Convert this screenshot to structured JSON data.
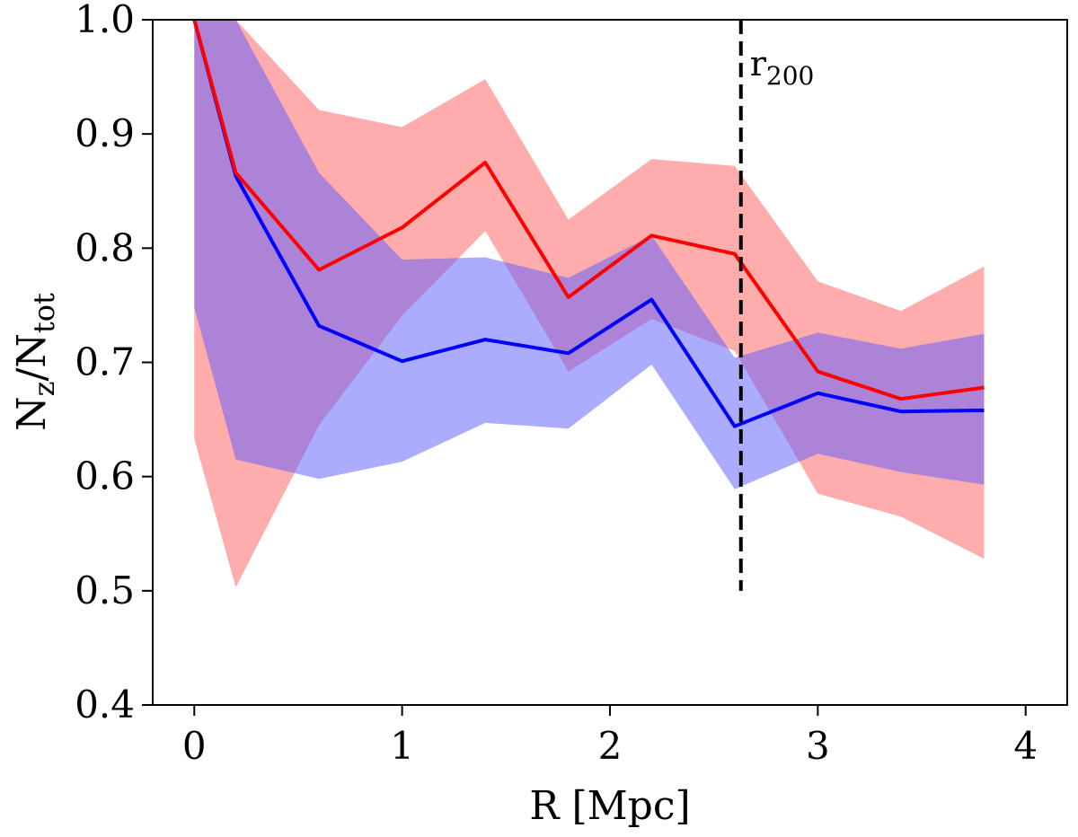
{
  "chart_data": {
    "type": "line",
    "title": "",
    "xlabel": "R  [Mpc]",
    "ylabel": {
      "base": "N",
      "sub1": "z",
      "sep": "/N",
      "sub2": "tot"
    },
    "xlim": [
      -0.2,
      4.2
    ],
    "ylim": [
      0.4,
      1.0
    ],
    "xticks": [
      0,
      1,
      2,
      3,
      4
    ],
    "yticks": [
      0.4,
      0.5,
      0.6,
      0.7,
      0.8,
      0.9,
      1.0
    ],
    "xtick_labels": [
      "0",
      "1",
      "2",
      "3",
      "4"
    ],
    "ytick_labels": [
      "0.4",
      "0.5",
      "0.6",
      "0.7",
      "0.8",
      "0.9",
      "1.0"
    ],
    "grid": false,
    "legend": null,
    "x": [
      0,
      0.2,
      0.6,
      1.0,
      1.4,
      1.8,
      2.2,
      2.6,
      3.0,
      3.4,
      3.8
    ],
    "series": [
      {
        "color": "#ff0000",
        "band_color": "#ff5a5a",
        "values": [
          1.0,
          0.866,
          0.781,
          0.818,
          0.875,
          0.757,
          0.811,
          0.795,
          0.692,
          0.668,
          0.678
        ],
        "upper": [
          1.0,
          1.0,
          0.921,
          0.906,
          0.948,
          0.825,
          0.878,
          0.872,
          0.771,
          0.745,
          0.784
        ],
        "lower": [
          0.633,
          0.503,
          0.645,
          0.741,
          0.815,
          0.692,
          0.738,
          0.71,
          0.585,
          0.565,
          0.528
        ]
      },
      {
        "color": "#0000ff",
        "band_color": "#5a5aff",
        "values": [
          1.0,
          0.863,
          0.732,
          0.701,
          0.72,
          0.708,
          0.755,
          0.644,
          0.673,
          0.657,
          0.658
        ],
        "upper": [
          1.0,
          1.0,
          0.866,
          0.79,
          0.792,
          0.774,
          0.811,
          0.704,
          0.726,
          0.712,
          0.725
        ],
        "lower": [
          0.748,
          0.615,
          0.598,
          0.613,
          0.647,
          0.642,
          0.698,
          0.589,
          0.62,
          0.604,
          0.593
        ]
      }
    ],
    "vline": {
      "x": 2.63,
      "y_from": 0.5,
      "y_to": 1.0,
      "label": "r",
      "label_sub": "200"
    }
  }
}
